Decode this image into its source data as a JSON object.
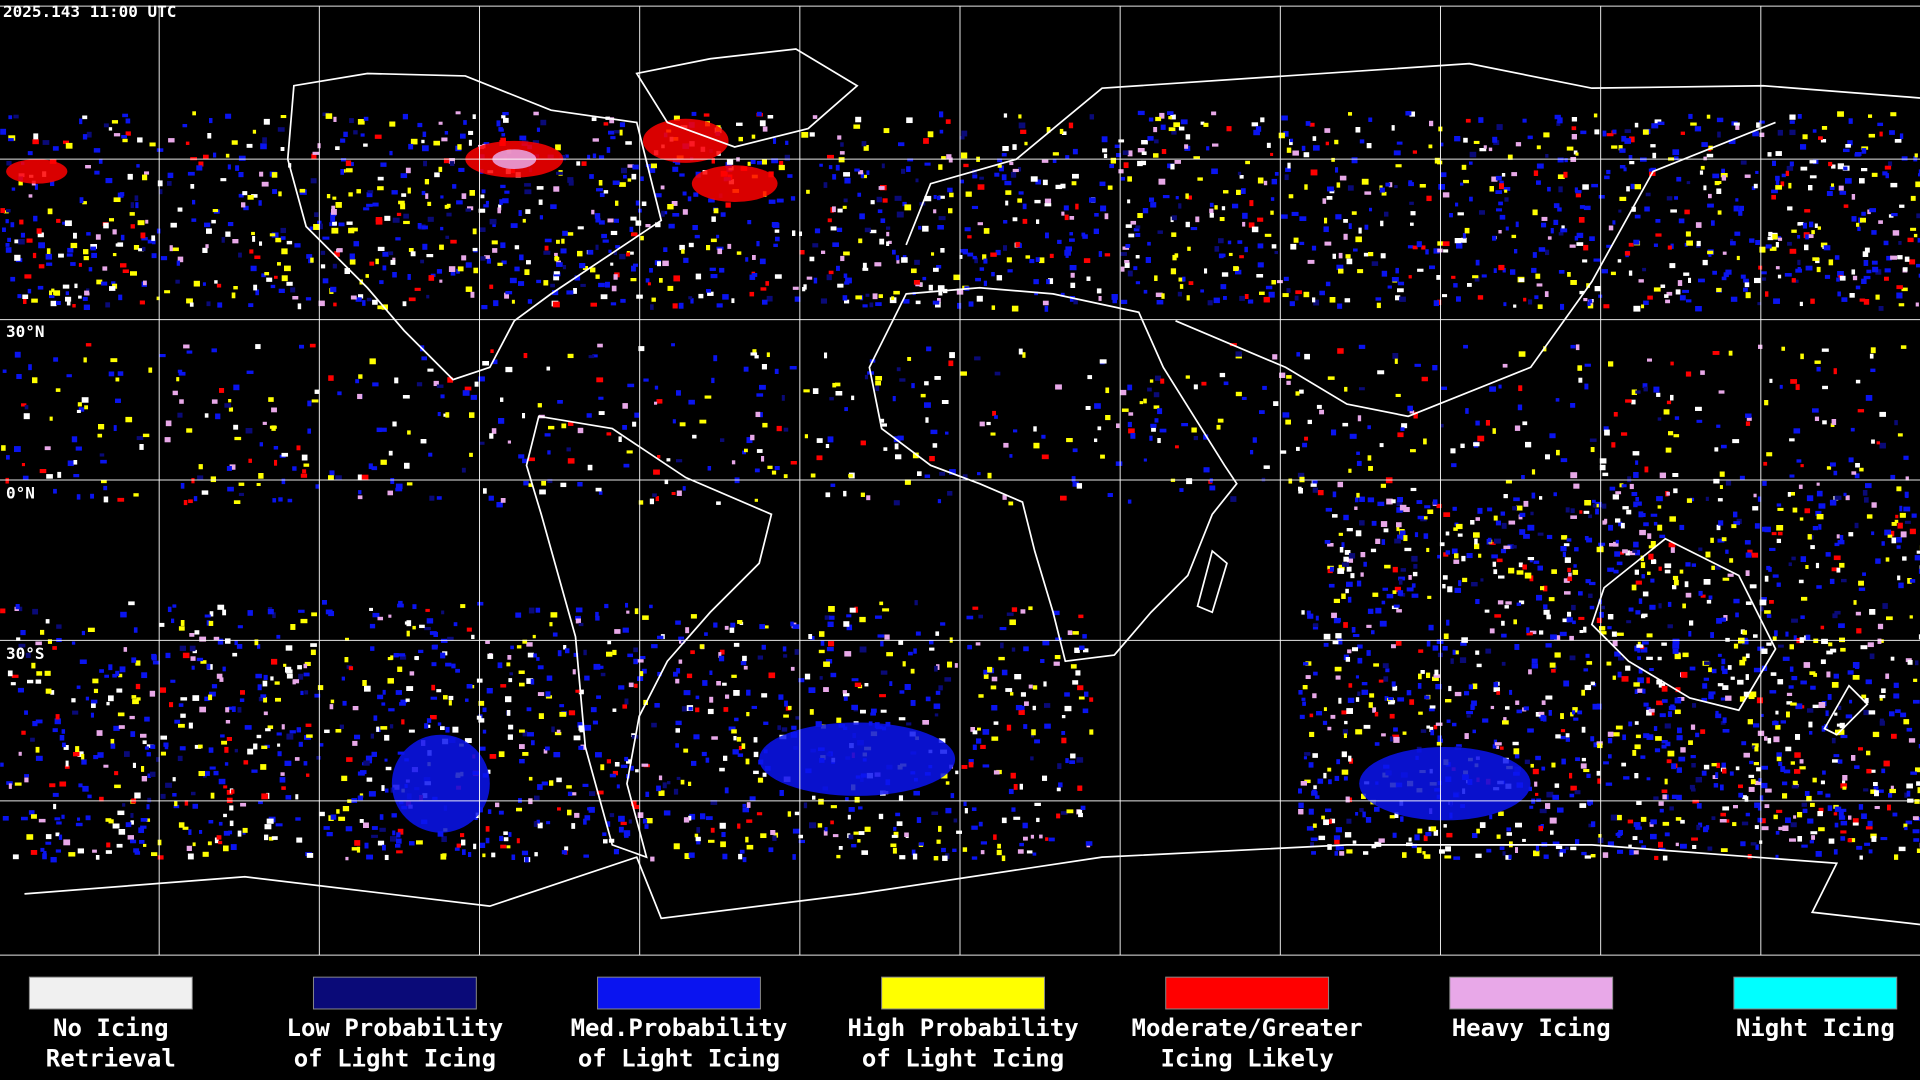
{
  "header": {
    "timestamp": "2025.143 11:00 UTC"
  },
  "map": {
    "latitude_labels": [
      "30°N",
      "0°N",
      "30°S"
    ]
  },
  "legend": [
    {
      "label_lines": [
        "No Icing",
        "Retrieval"
      ],
      "color": "#f0f0f0"
    },
    {
      "label_lines": [
        "Low Probability",
        "of Light Icing"
      ],
      "color": "#0a0a78"
    },
    {
      "label_lines": [
        "Med.Probability",
        "of Light Icing"
      ],
      "color": "#0a14f0"
    },
    {
      "label_lines": [
        "High Probability",
        "of Light Icing"
      ],
      "color": "#ffff00"
    },
    {
      "label_lines": [
        "Moderate/Greater",
        "Icing Likely"
      ],
      "color": "#ff0000"
    },
    {
      "label_lines": [
        "Heavy Icing"
      ],
      "color": "#e8a8e8"
    },
    {
      "label_lines": [
        "Night Icing"
      ],
      "color": "#00ffff"
    }
  ]
}
